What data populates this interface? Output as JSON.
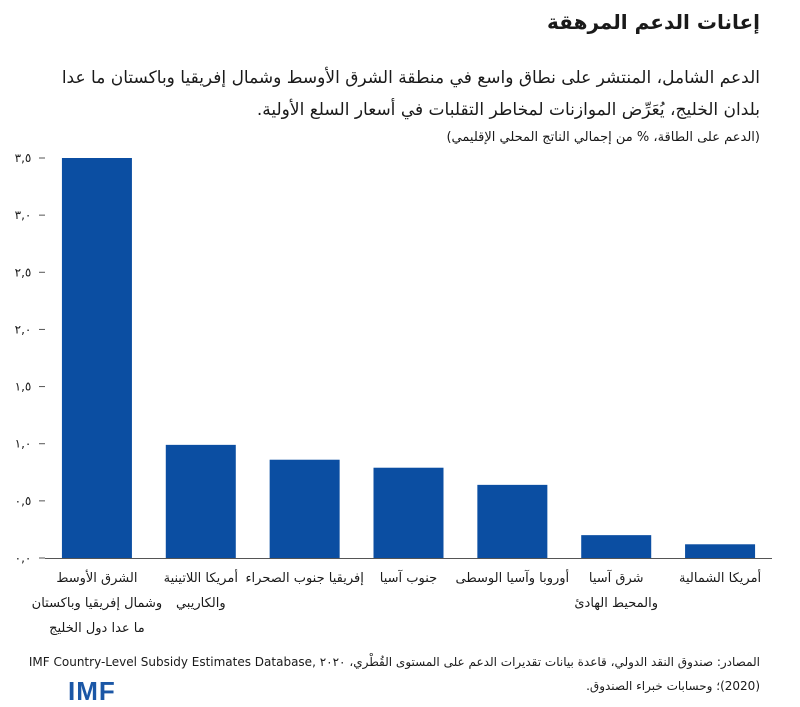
{
  "header": {
    "title": "إعانات الدعم المرهقة",
    "subtitle": "الدعم الشامل، المنتشر على نطاق واسع في منطقة الشرق الأوسط وشمال إفريقيا وباكستان ما عدا بلدان الخليج، يُعَرِّض الموازنات لمخاطر التقلبات في أسعار السلع الأولية.",
    "units": "(الدعم على الطاقة، % من إجمالي الناتج المحلي الإقليمي)"
  },
  "chart_data": {
    "type": "bar",
    "title": "إعانات الدعم المرهقة",
    "ylabel": "(الدعم على الطاقة، % من إجمالي الناتج المحلي الإقليمي)",
    "xlabel": "",
    "ylim": [
      0,
      3.5
    ],
    "yticks": [
      0,
      0.5,
      1.0,
      1.5,
      2.0,
      2.5,
      3.0,
      3.5
    ],
    "ytick_labels": [
      "٠,٠",
      "٠,٥",
      "١,٠",
      "١,٥",
      "٢,٠",
      "٢,٥",
      "٣,٠",
      "٣,٥"
    ],
    "grid": false,
    "color": "#0b4ea2",
    "categories": [
      [
        "الشرق الأوسط",
        "وشمال إفريقيا وباكستان",
        "ما عدا دول الخليج"
      ],
      [
        "أمريكا اللاتينية",
        "والكاريبي"
      ],
      [
        "إفريقيا جنوب الصحراء"
      ],
      [
        "جنوب آسيا"
      ],
      [
        "أوروبا وآسيا الوسطى"
      ],
      [
        "شرق آسيا",
        "والمحيط الهادئ"
      ],
      [
        "أمريكا الشمالية"
      ]
    ],
    "values": [
      3.5,
      0.99,
      0.86,
      0.79,
      0.64,
      0.2,
      0.12
    ]
  },
  "footer": {
    "source_line1": "المصادر: صندوق النقد الدولي، قاعدة بيانات تقديرات الدعم على المستوى القُطْري، ٢٠٢٠ ,IMF Country-Level Subsidy Estimates Database",
    "source_line2": "(2020)؛ وحسابات خبراء الصندوق.",
    "logo": "IMF"
  }
}
